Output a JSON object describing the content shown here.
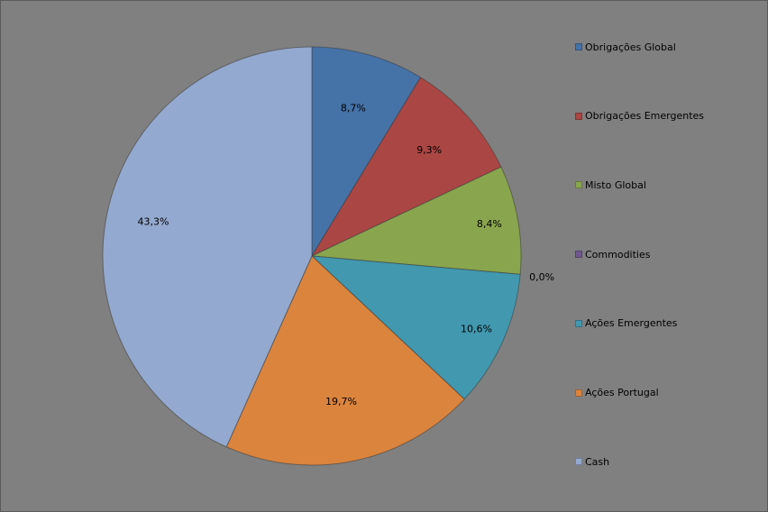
{
  "chart_data": {
    "type": "pie",
    "title": "",
    "legend_position": "right",
    "categories": [
      "Obrigações Global",
      "Obrigações Emergentes",
      "Misto Global",
      "Commodities",
      "Ações Emergentes",
      "Ações Portugal",
      "Cash"
    ],
    "values": [
      8.7,
      9.3,
      8.4,
      0.0,
      10.6,
      19.7,
      43.3
    ],
    "labels": [
      "8,7%",
      "9,3%",
      "8,4%",
      "0,0%",
      "10,6%",
      "19,7%",
      "43,3%"
    ],
    "colors": [
      "#4572A7",
      "#AA4643",
      "#89A54E",
      "#71588F",
      "#4198AF",
      "#DB843D",
      "#93A9CF"
    ],
    "start_angle_deg": 0,
    "direction": "clockwise"
  }
}
